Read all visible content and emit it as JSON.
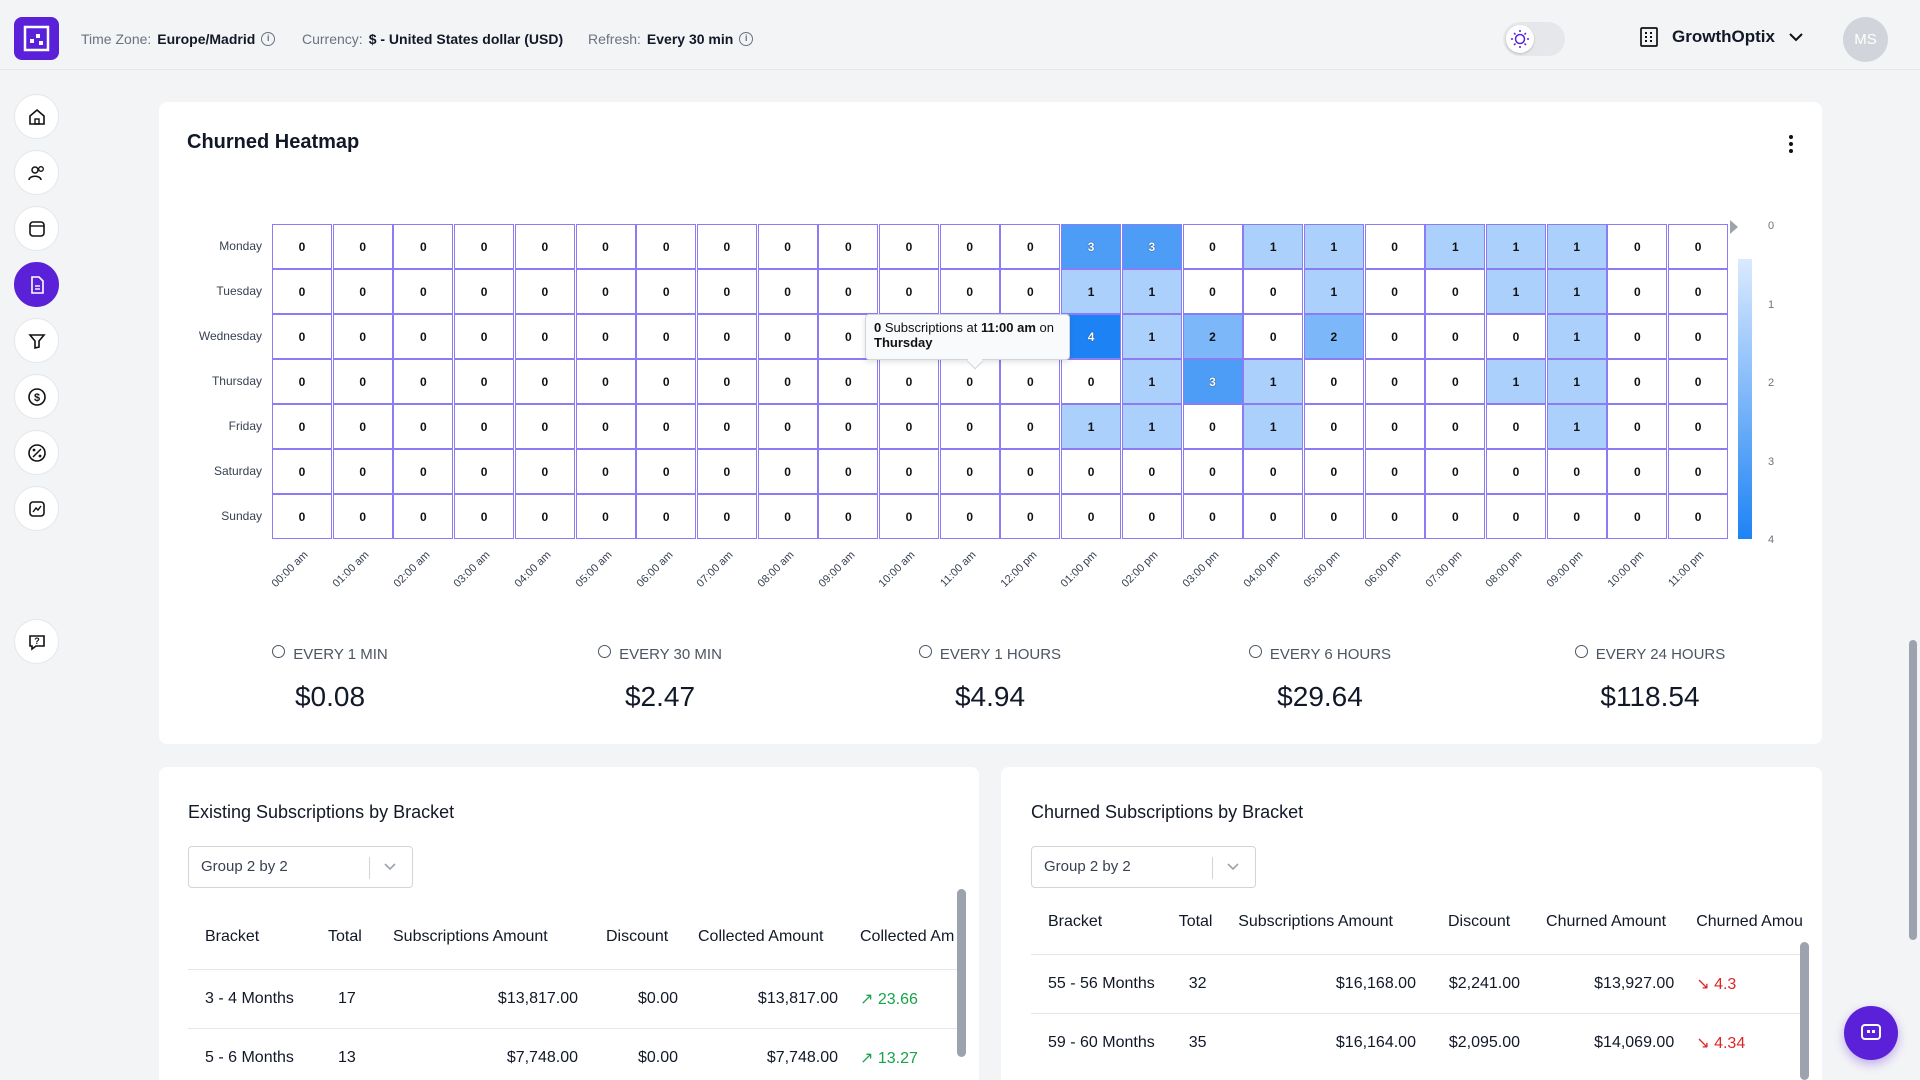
{
  "header": {
    "timezone_label": "Time Zone:",
    "timezone_value": "Europe/Madrid",
    "currency_label": "Currency:",
    "currency_value": "$ - United States dollar (USD)",
    "refresh_label": "Refresh:",
    "refresh_value": "Every 30 min",
    "org_name": "GrowthOptix",
    "avatar_initials": "MS"
  },
  "sidebar": {
    "items": [
      "home-icon",
      "users-icon",
      "folder-icon",
      "document-icon",
      "filter-icon",
      "dollar-icon",
      "discount-icon",
      "analytics-icon"
    ],
    "active_index": 3,
    "help": "help-icon"
  },
  "heatmap_card": {
    "title": "Churned Heatmap",
    "tooltip": {
      "count": "0",
      "text1": " Subscriptions at ",
      "time": "11:00 am",
      "text2": " on ",
      "day": "Thursday"
    },
    "stats": [
      {
        "label": "EVERY 1 MIN",
        "value": "$0.08"
      },
      {
        "label": "EVERY 30 MIN",
        "value": "$2.47"
      },
      {
        "label": "EVERY 1 HOURS",
        "value": "$4.94"
      },
      {
        "label": "EVERY 6 HOURS",
        "value": "$29.64"
      },
      {
        "label": "EVERY 24 HOURS",
        "value": "$118.54"
      }
    ]
  },
  "chart_data": {
    "type": "heatmap",
    "rows": [
      "Monday",
      "Tuesday",
      "Wednesday",
      "Thursday",
      "Friday",
      "Saturday",
      "Sunday"
    ],
    "columns": [
      "00:00 am",
      "01:00 am",
      "02:00 am",
      "03:00 am",
      "04:00 am",
      "05:00 am",
      "06:00 am",
      "07:00 am",
      "08:00 am",
      "09:00 am",
      "10:00 am",
      "11:00 am",
      "12:00 pm",
      "01:00 pm",
      "02:00 pm",
      "03:00 pm",
      "04:00 pm",
      "05:00 pm",
      "06:00 pm",
      "07:00 pm",
      "08:00 pm",
      "09:00 pm",
      "10:00 pm",
      "11:00 pm"
    ],
    "values": [
      [
        0,
        0,
        0,
        0,
        0,
        0,
        0,
        0,
        0,
        0,
        0,
        0,
        0,
        3,
        3,
        0,
        1,
        1,
        0,
        1,
        1,
        1,
        0,
        0
      ],
      [
        0,
        0,
        0,
        0,
        0,
        0,
        0,
        0,
        0,
        0,
        0,
        0,
        0,
        1,
        1,
        0,
        0,
        1,
        0,
        0,
        1,
        1,
        0,
        0
      ],
      [
        0,
        0,
        0,
        0,
        0,
        0,
        0,
        0,
        0,
        0,
        0,
        0,
        0,
        4,
        1,
        2,
        0,
        2,
        0,
        0,
        0,
        1,
        0,
        0
      ],
      [
        0,
        0,
        0,
        0,
        0,
        0,
        0,
        0,
        0,
        0,
        0,
        0,
        0,
        0,
        1,
        3,
        1,
        0,
        0,
        0,
        1,
        1,
        0,
        0
      ],
      [
        0,
        0,
        0,
        0,
        0,
        0,
        0,
        0,
        0,
        0,
        0,
        0,
        0,
        1,
        1,
        0,
        1,
        0,
        0,
        0,
        0,
        1,
        0,
        0
      ],
      [
        0,
        0,
        0,
        0,
        0,
        0,
        0,
        0,
        0,
        0,
        0,
        0,
        0,
        0,
        0,
        0,
        0,
        0,
        0,
        0,
        0,
        0,
        0,
        0
      ],
      [
        0,
        0,
        0,
        0,
        0,
        0,
        0,
        0,
        0,
        0,
        0,
        0,
        0,
        0,
        0,
        0,
        0,
        0,
        0,
        0,
        0,
        0,
        0,
        0
      ]
    ],
    "scale": {
      "min": 0,
      "max": 4,
      "ticks": [
        "0",
        "1",
        "2",
        "3",
        "4"
      ],
      "low_color": "#dbeafe",
      "high_color": "#1d83f5"
    },
    "legend": "right"
  },
  "existing_table": {
    "title": "Existing Subscriptions by Bracket",
    "select_value": "Group 2 by 2",
    "headers": [
      "Bracket",
      "Total",
      "Subscriptions Amount",
      "Discount",
      "Collected Amount",
      "Collected Am"
    ],
    "rows": [
      {
        "bracket": "3 - 4 Months",
        "total": "17",
        "subs_amount": "$13,817.00",
        "discount": "$0.00",
        "collected": "$13,817.00",
        "trend": "23.66"
      },
      {
        "bracket": "5 - 6 Months",
        "total": "13",
        "subs_amount": "$7,748.00",
        "discount": "$0.00",
        "collected": "$7,748.00",
        "trend": "13.27"
      }
    ]
  },
  "churned_table": {
    "title": "Churned Subscriptions by Bracket",
    "select_value": "Group 2 by 2",
    "headers": [
      "Bracket",
      "Total",
      "Subscriptions Amount",
      "Discount",
      "Churned Amount",
      "Churned Amou"
    ],
    "rows": [
      {
        "bracket": "55 - 56 Months",
        "total": "32",
        "subs_amount": "$16,168.00",
        "discount": "$2,241.00",
        "churned": "$13,927.00",
        "trend": "4.3"
      },
      {
        "bracket": "59 - 60 Months",
        "total": "35",
        "subs_amount": "$16,164.00",
        "discount": "$2,095.00",
        "churned": "$14,069.00",
        "trend": "4.34"
      }
    ]
  }
}
